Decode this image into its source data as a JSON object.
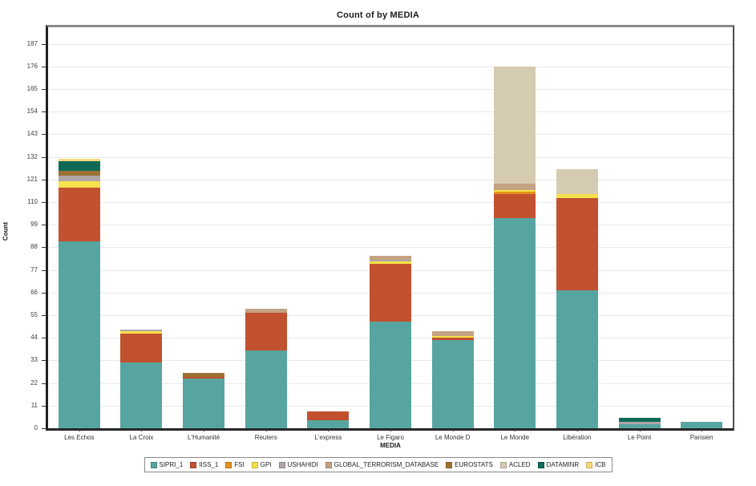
{
  "chart_data": {
    "type": "bar",
    "stacked": true,
    "title": "Count of  by MEDIA",
    "xlabel": "MEDIA",
    "ylabel": "Count",
    "ylim": [
      0,
      195
    ],
    "yticks": [
      0,
      11,
      22,
      33,
      44,
      55,
      66,
      77,
      88,
      99,
      110,
      121,
      132,
      143,
      154,
      165,
      176,
      187
    ],
    "grid": true,
    "legend_position": "bottom",
    "categories": [
      "Les Echos",
      "La Croix",
      "L'Humanité",
      "Reuters",
      "L'express",
      "Le Figaro",
      "Le Monde D",
      "Le Monde",
      "Libération",
      "Le Point",
      "Parisien"
    ],
    "series": [
      {
        "name": "SIPRI_1",
        "color": "#57A5A0",
        "values": [
          91,
          32,
          24,
          38,
          4,
          52,
          43,
          102,
          67,
          2,
          3
        ]
      },
      {
        "name": "IISS_1",
        "color": "#C2512F",
        "values": [
          26,
          14,
          1,
          18,
          4,
          28,
          1,
          12,
          45,
          0,
          0
        ]
      },
      {
        "name": "FSI",
        "color": "#E2931D",
        "values": [
          0,
          0,
          0,
          0,
          0,
          0,
          0,
          1,
          0,
          0,
          0
        ]
      },
      {
        "name": "GPI",
        "color": "#F6E04B",
        "values": [
          3,
          1,
          0,
          0,
          0,
          1,
          1,
          1,
          2,
          0,
          0
        ]
      },
      {
        "name": "USHAHIDI",
        "color": "#B0A6A6",
        "values": [
          3,
          1,
          0,
          0,
          0,
          1,
          0,
          0,
          0,
          1,
          0
        ]
      },
      {
        "name": "GLOBAL_TERRORISM_DATABASE",
        "color": "#C3A283",
        "values": [
          0,
          0,
          0,
          2,
          0,
          2,
          2,
          3,
          0,
          0,
          0
        ]
      },
      {
        "name": "EUROSTATS",
        "color": "#9C7232",
        "values": [
          2,
          0,
          2,
          0,
          0,
          0,
          0,
          0,
          0,
          0,
          0
        ]
      },
      {
        "name": "ACLED",
        "color": "#D5CBB1",
        "values": [
          0,
          0,
          0,
          0,
          0,
          0,
          0,
          57,
          12,
          0,
          0
        ]
      },
      {
        "name": "DATAMINR",
        "color": "#0C6A57",
        "values": [
          5,
          0,
          0,
          0,
          0,
          0,
          0,
          0,
          0,
          2,
          0
        ]
      },
      {
        "name": "ICB",
        "color": "#F5D97C",
        "values": [
          1,
          0,
          0,
          0,
          0,
          0,
          0,
          0,
          0,
          0,
          0
        ]
      }
    ],
    "totals": [
      131,
      48,
      27,
      58,
      8,
      84,
      47,
      176,
      126,
      5,
      3
    ]
  }
}
